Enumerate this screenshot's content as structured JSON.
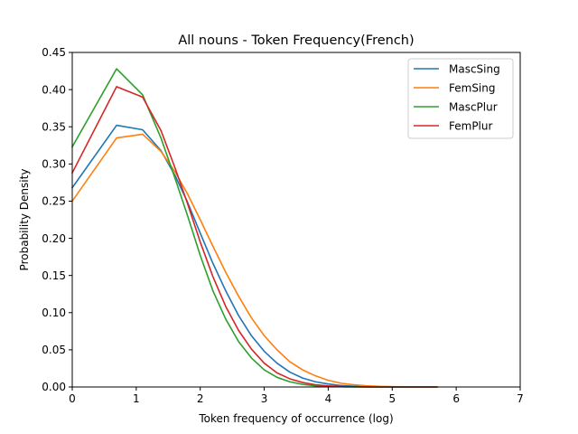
{
  "chart_data": {
    "type": "line",
    "title": "All nouns - Token Frequency(French)",
    "xlabel": "Token frequency of occurrence (log)",
    "ylabel": "Probability Density",
    "xlim": [
      0,
      7
    ],
    "ylim": [
      0,
      0.45
    ],
    "xticks": [
      0,
      1,
      2,
      3,
      4,
      5,
      6,
      7
    ],
    "xtick_labels": [
      "0",
      "1",
      "2",
      "3",
      "4",
      "5",
      "6",
      "7"
    ],
    "yticks": [
      0,
      0.05,
      0.1,
      0.15,
      0.2,
      0.25,
      0.3,
      0.35,
      0.4,
      0.45
    ],
    "ytick_labels": [
      "0.00",
      "0.05",
      "0.10",
      "0.15",
      "0.20",
      "0.25",
      "0.30",
      "0.35",
      "0.40",
      "0.45"
    ],
    "grid": false,
    "legend_position": "top-right",
    "series": [
      {
        "name": "MascSing",
        "color": "#1f77b4",
        "x": [
          0,
          0.693,
          1.099,
          1.386,
          1.609,
          1.8,
          2.0,
          2.2,
          2.4,
          2.6,
          2.8,
          3.0,
          3.2,
          3.4,
          3.6,
          3.8,
          4.0,
          4.2,
          4.4,
          4.6,
          4.8,
          5.0,
          5.3,
          5.7
        ],
        "y": [
          0.268,
          0.352,
          0.346,
          0.318,
          0.284,
          0.249,
          0.207,
          0.166,
          0.129,
          0.096,
          0.069,
          0.048,
          0.032,
          0.02,
          0.012,
          0.007,
          0.004,
          0.002,
          0.001,
          0.0005,
          0.0002,
          0.0001,
          0.0,
          0.0
        ]
      },
      {
        "name": "FemSing",
        "color": "#ff7f0e",
        "x": [
          0,
          0.693,
          1.099,
          1.386,
          1.609,
          1.8,
          2.0,
          2.2,
          2.4,
          2.6,
          2.8,
          3.0,
          3.2,
          3.4,
          3.6,
          3.8,
          4.0,
          4.2,
          4.4,
          4.6,
          4.8,
          5.0,
          5.3,
          5.7
        ],
        "y": [
          0.25,
          0.335,
          0.34,
          0.317,
          0.289,
          0.26,
          0.225,
          0.189,
          0.154,
          0.122,
          0.093,
          0.069,
          0.05,
          0.034,
          0.023,
          0.015,
          0.009,
          0.005,
          0.003,
          0.0016,
          0.0008,
          0.0004,
          0.0001,
          0.0
        ]
      },
      {
        "name": "MascPlur",
        "color": "#2ca02c",
        "x": [
          0,
          0.693,
          1.099,
          1.386,
          1.609,
          1.8,
          2.0,
          2.2,
          2.4,
          2.6,
          2.8,
          3.0,
          3.2,
          3.4,
          3.6,
          3.8,
          4.0,
          4.2,
          4.4,
          4.6,
          4.8,
          5.0,
          5.3,
          5.7
        ],
        "y": [
          0.323,
          0.428,
          0.393,
          0.335,
          0.28,
          0.231,
          0.177,
          0.129,
          0.091,
          0.061,
          0.039,
          0.023,
          0.013,
          0.007,
          0.0035,
          0.0016,
          0.0007,
          0.0003,
          0.0001,
          0.0,
          0.0,
          0.0,
          0.0,
          0.0
        ]
      },
      {
        "name": "FemPlur",
        "color": "#d62728",
        "x": [
          0,
          0.693,
          1.099,
          1.386,
          1.609,
          1.8,
          2.0,
          2.2,
          2.4,
          2.6,
          2.8,
          3.0,
          3.2,
          3.4,
          3.6,
          3.8,
          4.0,
          4.2,
          4.4,
          4.6,
          4.8,
          5.0,
          5.3,
          5.7
        ],
        "y": [
          0.288,
          0.404,
          0.39,
          0.345,
          0.294,
          0.247,
          0.195,
          0.148,
          0.108,
          0.076,
          0.051,
          0.032,
          0.019,
          0.011,
          0.006,
          0.003,
          0.0015,
          0.0007,
          0.0003,
          0.0001,
          0.0,
          0.0,
          0.0,
          0.0
        ]
      }
    ]
  }
}
